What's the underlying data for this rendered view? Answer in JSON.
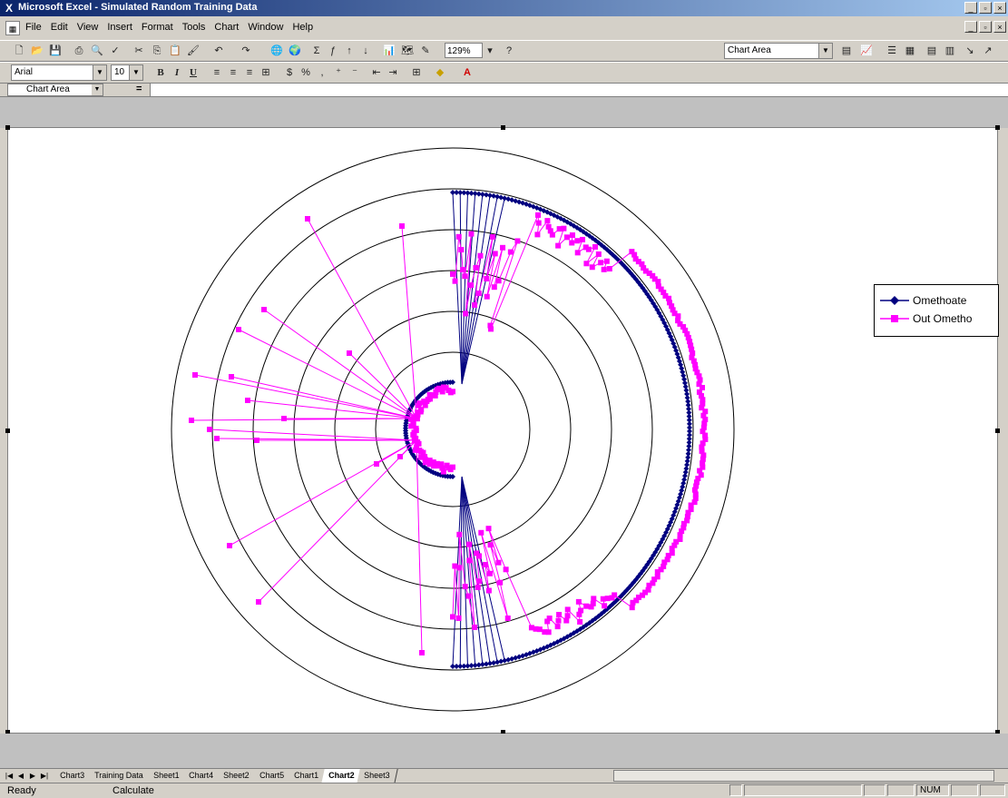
{
  "window": {
    "title": "Microsoft Excel - Simulated Random Training Data"
  },
  "menu": [
    "File",
    "Edit",
    "View",
    "Insert",
    "Format",
    "Tools",
    "Chart",
    "Window",
    "Help"
  ],
  "toolbar": {
    "zoom": "129%",
    "font": "Arial",
    "font_size": "10",
    "chart_object": "Chart Area"
  },
  "formula_bar": {
    "name_box": "Chart Area",
    "equals": "="
  },
  "legend": {
    "series": [
      {
        "name": "Omethoate",
        "color": "#000080",
        "marker": "diamond"
      },
      {
        "name": "Out Ometho",
        "color": "#ff00ff",
        "marker": "square"
      }
    ]
  },
  "chart_data": {
    "type": "radar",
    "rings": 6,
    "series": [
      {
        "name": "Omethoate",
        "color": "#000080"
      },
      {
        "name": "Out Ometho",
        "color": "#ff00ff"
      }
    ]
  },
  "sheet_tabs": [
    "Chart3",
    "Training Data",
    "Sheet1",
    "Chart4",
    "Sheet2",
    "Chart5",
    "Chart1",
    "Chart2",
    "Sheet3"
  ],
  "active_tab": "Chart2",
  "status": {
    "ready": "Ready",
    "mode": "Calculate",
    "num": "NUM"
  }
}
